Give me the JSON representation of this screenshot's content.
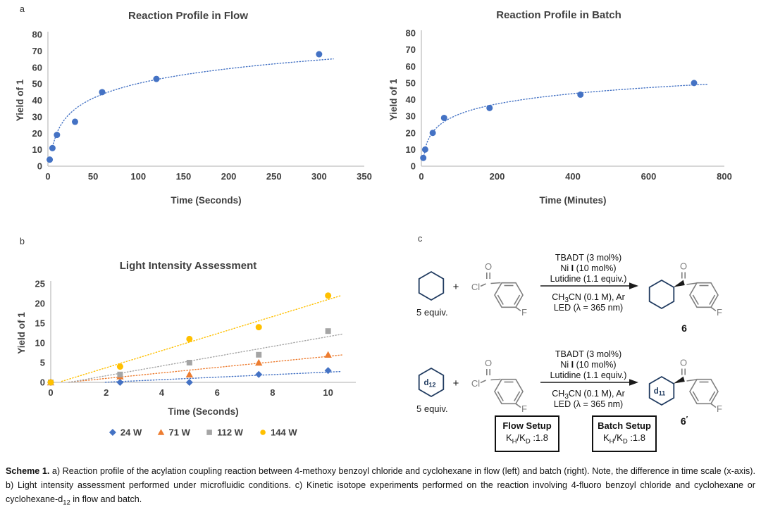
{
  "figure": {
    "panel_labels": {
      "a": "a",
      "b": "b",
      "c": "c"
    }
  },
  "chart_data": [
    {
      "type": "scatter",
      "title": "Reaction Profile in Flow",
      "xlabel": "Time (Seconds)",
      "ylabel": "Yield of ",
      "ylabel_bold": "1",
      "xlim": [
        0,
        350
      ],
      "xticks": [
        0,
        50,
        100,
        150,
        200,
        250,
        300,
        350
      ],
      "ylim": [
        0,
        80
      ],
      "yticks": [
        0,
        10,
        20,
        30,
        40,
        50,
        60,
        70,
        80
      ],
      "grid": false,
      "legend": null,
      "series": [
        {
          "name": "Yield of 1",
          "color": "#4472C4",
          "marker": "circle",
          "marker_size": 4.5,
          "x": [
            2,
            5,
            10,
            30,
            60,
            120,
            300
          ],
          "y": [
            4,
            11,
            19,
            27,
            45,
            53,
            68
          ],
          "trend": "log"
        }
      ]
    },
    {
      "type": "scatter",
      "title": "Reaction Profile in Batch",
      "xlabel": "Time (Minutes)",
      "ylabel": "Yield of ",
      "ylabel_bold": "1",
      "xlim": [
        0,
        800
      ],
      "xticks": [
        0,
        200,
        400,
        600,
        800
      ],
      "ylim": [
        0,
        80
      ],
      "yticks": [
        0,
        10,
        20,
        30,
        40,
        50,
        60,
        70,
        80
      ],
      "grid": false,
      "legend": null,
      "series": [
        {
          "name": "Yield of 1",
          "color": "#4472C4",
          "marker": "circle",
          "marker_size": 4.5,
          "x": [
            5,
            10,
            30,
            60,
            180,
            420,
            720
          ],
          "y": [
            5,
            10,
            20,
            29,
            35,
            43,
            50
          ],
          "trend": "log"
        }
      ]
    },
    {
      "type": "scatter",
      "title": "Light Intensity Assessment",
      "xlabel": "Time (Seconds)",
      "ylabel": "Yield of ",
      "ylabel_bold": "1",
      "xlim": [
        0,
        11
      ],
      "xticks": [
        0,
        2,
        4,
        6,
        8,
        10
      ],
      "ylim": [
        0,
        25
      ],
      "yticks": [
        0,
        5,
        10,
        15,
        20,
        25
      ],
      "grid": false,
      "legend": "bottom",
      "series": [
        {
          "name": "24 W",
          "color": "#4472C4",
          "marker": "diamond",
          "marker_size": 3.8,
          "x": [
            0,
            2.5,
            5,
            7.5,
            10
          ],
          "y": [
            0,
            0,
            0,
            2,
            3
          ],
          "trend": "linear"
        },
        {
          "name": "71 W",
          "color": "#ED7D31",
          "marker": "triangle",
          "marker_size": 4.2,
          "x": [
            0,
            2.5,
            5,
            7.5,
            10
          ],
          "y": [
            0,
            1.5,
            2,
            5,
            7
          ],
          "trend": "linear"
        },
        {
          "name": "112 W",
          "color": "#A5A5A5",
          "marker": "square",
          "marker_size": 4,
          "x": [
            0,
            2.5,
            5,
            7.5,
            10
          ],
          "y": [
            0,
            2,
            5,
            7,
            13
          ],
          "trend": "linear"
        },
        {
          "name": "144 W",
          "color": "#FFC000",
          "marker": "circle",
          "marker_size": 4.5,
          "x": [
            0,
            2.5,
            5,
            7.5,
            10
          ],
          "y": [
            0,
            4,
            11,
            14,
            22
          ],
          "trend": "linear"
        }
      ]
    }
  ],
  "scheme": {
    "plus": "+",
    "cl": "Cl",
    "o": "O",
    "f": "F",
    "equiv": "5 equiv.",
    "cond1": "TBADT (3 mol%)",
    "cond2_pre": "Ni ",
    "cond2_bold": "I",
    "cond2_post": " (10 mol%)",
    "cond3": "Lutidine (1.1 equiv.)",
    "cond4_pre": "CH",
    "cond4_sub": "3",
    "cond4_post": "CN (0.1 M), Ar",
    "cond5": "LED (λ = 365 nm)",
    "d_pre": "d",
    "d12_sub": "12",
    "d11_sub": "11",
    "product1_label": "6",
    "product2_label": "6",
    "product2_prime": "′",
    "colors": {
      "hexagon": "#1F3A5F",
      "structure_gray": "#7F7F7F",
      "marker_blue": "#4472C4",
      "orange": "#ED7D31",
      "gray": "#A5A5A5",
      "yellow": "#FFC000"
    },
    "boxes": [
      {
        "title": "Flow Setup",
        "k1": "K",
        "sub1": "H",
        "k2": "/K",
        "sub2": "D",
        "value": " :1.8"
      },
      {
        "title": "Batch Setup",
        "k1": "K",
        "sub1": "H",
        "k2": "/K",
        "sub2": "D",
        "value": " :1.8"
      }
    ]
  },
  "caption": {
    "bold": "Scheme 1.",
    "part1": " a) Reaction profile of the acylation coupling reaction between 4-methoxy benzoyl chloride and cyclohexane in flow (left) and batch (right). Note, the difference in time scale (x-axis). b) Light intensity assessment performed under microfluidic conditions. c) Kinetic isotope experiments performed on the reaction involving 4-fluoro benzoyl chloride and cyclohexane or cyclohexane-d",
    "sub": "12",
    "part2": " in flow and batch."
  }
}
